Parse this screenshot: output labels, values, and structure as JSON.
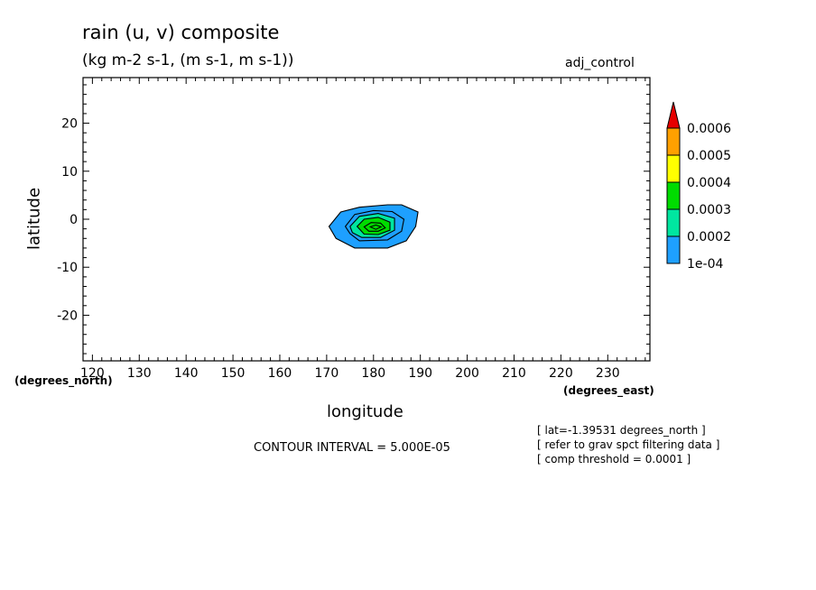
{
  "chart_data": {
    "type": "contour",
    "title": "rain (u, v) composite",
    "subtitle": "(kg m-2 s-1, (m s-1, m s-1))",
    "experiment": "adj_control",
    "xlabel": "longitude",
    "ylabel": "latitude",
    "x_units": "(degrees_east)",
    "y_units": "(degrees_north)",
    "xlim": [
      118,
      239
    ],
    "ylim": [
      -29.5,
      29.5
    ],
    "x_ticks": [
      120,
      130,
      140,
      150,
      160,
      170,
      180,
      190,
      200,
      210,
      220,
      230
    ],
    "y_ticks": [
      20,
      10,
      0,
      -10,
      -20
    ],
    "contour_interval": "CONTOUR INTERVAL = 5.000E-05",
    "notes": [
      "[ lat=-1.39531 degrees_north ]",
      "[ refer to grav spct filtering data ]",
      "[ comp threshold = 0.0001 ]"
    ],
    "colorbar": {
      "levels": [
        "1e-04",
        "0.0002",
        "0.0003",
        "0.0004",
        "0.0005",
        "0.0006"
      ],
      "colors": [
        "#1ea0ff",
        "#00e6a0",
        "#00dc00",
        "#ffff00",
        "#ffa000",
        "#e60000"
      ]
    },
    "contours": [
      {
        "level": 0.0001,
        "color": "#1ea0ff",
        "points": [
          [
            170.5,
            -1.5
          ],
          [
            173,
            1.5
          ],
          [
            177,
            2.5
          ],
          [
            183,
            3.0
          ],
          [
            186,
            3.0
          ],
          [
            189.5,
            1.5
          ],
          [
            189,
            -1.5
          ],
          [
            187,
            -4.5
          ],
          [
            183,
            -6.0
          ],
          [
            176,
            -6.0
          ],
          [
            172,
            -4.0
          ]
        ]
      },
      {
        "level": 0.00015,
        "color": "#1ea0ff",
        "points": [
          [
            174,
            -1.5
          ],
          [
            176,
            1.0
          ],
          [
            180,
            1.8
          ],
          [
            184,
            1.6
          ],
          [
            186.5,
            0.0
          ],
          [
            186,
            -2.5
          ],
          [
            183,
            -4.3
          ],
          [
            177,
            -4.5
          ],
          [
            175,
            -3.0
          ]
        ]
      },
      {
        "level": 0.0002,
        "color": "#00e6a0",
        "points": [
          [
            175,
            -1.5
          ],
          [
            177,
            0.6
          ],
          [
            181,
            1.2
          ],
          [
            184.5,
            0.2
          ],
          [
            184.5,
            -2.3
          ],
          [
            181.5,
            -3.8
          ],
          [
            177.5,
            -3.8
          ],
          [
            175.5,
            -2.8
          ]
        ]
      },
      {
        "level": 0.0003,
        "color": "#00dc00",
        "points": [
          [
            176.5,
            -1.5
          ],
          [
            178,
            0.0
          ],
          [
            181,
            0.4
          ],
          [
            183.5,
            -0.6
          ],
          [
            183.5,
            -2.3
          ],
          [
            181,
            -3.2
          ],
          [
            178,
            -3.1
          ]
        ]
      },
      {
        "level": 0.00035,
        "color": "#00dc00",
        "points": [
          [
            178,
            -1.6
          ],
          [
            179.5,
            -0.7
          ],
          [
            181.5,
            -0.8
          ],
          [
            182.5,
            -1.8
          ],
          [
            181,
            -2.5
          ],
          [
            179,
            -2.5
          ]
        ]
      },
      {
        "level": 0.0004,
        "color": "#00dc00",
        "points": [
          [
            179.3,
            -1.6
          ],
          [
            180.5,
            -1.2
          ],
          [
            181.6,
            -1.6
          ],
          [
            180.5,
            -2.1
          ]
        ]
      }
    ]
  }
}
